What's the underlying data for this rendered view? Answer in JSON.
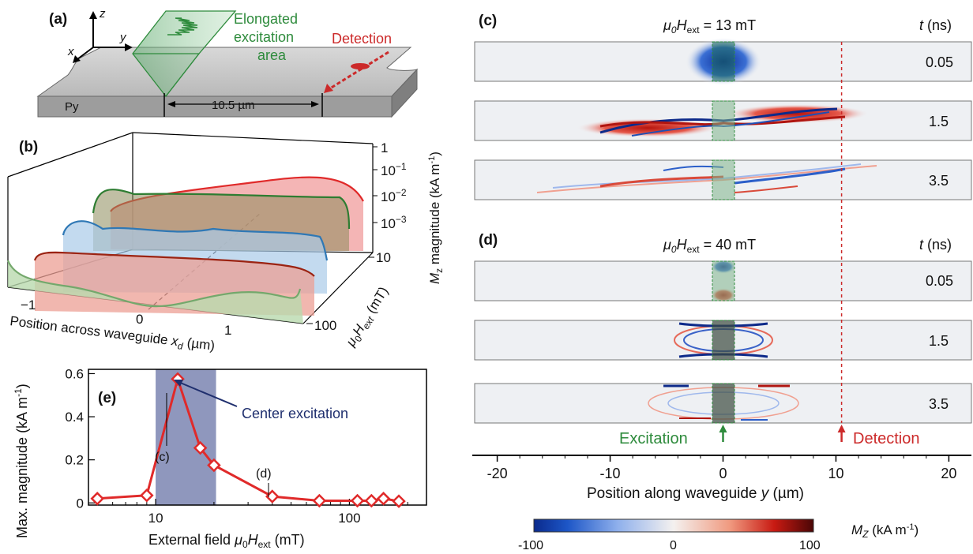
{
  "panels": {
    "a": {
      "label": "(a)",
      "axes": {
        "x": "x",
        "y": "y",
        "z": "z"
      },
      "material": "Py",
      "excitation_line1": "Elongated",
      "excitation_line2": "excitation",
      "excitation_line3": "area",
      "detection": "Detection",
      "distance": "10.5 µm"
    },
    "b": {
      "label": "(b)",
      "xlabel_main": "Position across waveguide",
      "xlabel_sym": "x",
      "xlabel_sub": "d",
      "xlabel_unit": " (µm)",
      "xticks": [
        "−1",
        "0",
        "1"
      ],
      "zlabel_sym": "M",
      "zlabel_sub": "z",
      "zlabel_rest": " magnitude (kA m",
      "zlabel_exp": "-1",
      "zlabel_end": ")",
      "zticks": [
        {
          "base": "1",
          "exp": ""
        },
        {
          "base": "10",
          "exp": "−1"
        },
        {
          "base": "10",
          "exp": "−2"
        },
        {
          "base": "10",
          "exp": "−3"
        }
      ],
      "field_ticks": [
        "10",
        "100"
      ],
      "field_sym": "μ",
      "field_sub0": "0",
      "field_H": "H",
      "field_sub": "ext",
      "field_unit": " (mT)"
    },
    "c": {
      "label": "(c)",
      "field_sym": "μ",
      "field_sub0": "0",
      "field_H": "H",
      "field_sub": "ext",
      "field_value": " = 13 mT",
      "t_sym": "t",
      "t_unit": " (ns)",
      "times": [
        "0.05",
        "1.5",
        "3.5"
      ]
    },
    "d": {
      "label": "(d)",
      "field_sym": "μ",
      "field_sub0": "0",
      "field_H": "H",
      "field_sub": "ext",
      "field_value": " = 40 mT",
      "t_sym": "t",
      "t_unit": " (ns)",
      "times": [
        "0.05",
        "1.5",
        "3.5"
      ],
      "excitation": "Excitation",
      "detection": "Detection",
      "xlabel_main": "Position along waveguide ",
      "xlabel_sym": "y",
      "xlabel_unit": " (µm)"
    },
    "colorbar": {
      "min": "-100",
      "mid": "0",
      "max": "100",
      "label_sym": "M",
      "label_sub": "Z",
      "label_rest": " (kA m",
      "label_exp": "-1",
      "label_end": ")"
    },
    "e": {
      "label": "(e)",
      "annotation": "Center excitation",
      "point_c": "(c)",
      "point_d": "(d)",
      "xlabel_main": "External field ",
      "xlabel_sym": "μ",
      "xlabel_sub0": "0",
      "xlabel_H": "H",
      "xlabel_sub": "ext",
      "xlabel_unit": " (mT)",
      "ylabel_main": "Max. magnitude (kA m",
      "ylabel_exp": "-1",
      "ylabel_end": ")"
    }
  },
  "colors": {
    "red": "#e02a2a",
    "green": "#2e8b3c",
    "blue": "#2f78b5",
    "darkred": "#9b2312",
    "lightgreen": "#74a86c",
    "navy": "#1f2f6e",
    "shade": "#8f97bd"
  },
  "chart_data": [
    {
      "id": "e",
      "type": "line",
      "xscale": "log",
      "xlim": [
        4.5,
        250
      ],
      "ylim": [
        -0.01,
        0.62
      ],
      "xticks": [
        10,
        100
      ],
      "yticks": [
        0,
        0.2,
        0.4,
        0.6
      ],
      "ytick_labels": [
        "0",
        "0.2",
        "0.4",
        "0.6"
      ],
      "xtick_labels": [
        "10",
        "100"
      ],
      "shaded_range": [
        10,
        20.5
      ],
      "x": [
        5,
        9,
        13,
        17,
        20,
        40,
        70,
        110,
        130,
        150,
        180
      ],
      "y": [
        0.02,
        0.035,
        0.575,
        0.255,
        0.175,
        0.03,
        0.01,
        0.01,
        0.01,
        0.02,
        0.008
      ]
    },
    {
      "id": "c-d",
      "type": "heatmap",
      "xlim": [
        -22,
        22
      ],
      "xticks": [
        -20,
        -10,
        0,
        10,
        20
      ],
      "xtick_labels": [
        "-20",
        "-10",
        "0",
        "10",
        "20"
      ],
      "excitation_y": 0,
      "detection_y": 10.5,
      "colorbar_range": [
        -100,
        100
      ]
    }
  ]
}
